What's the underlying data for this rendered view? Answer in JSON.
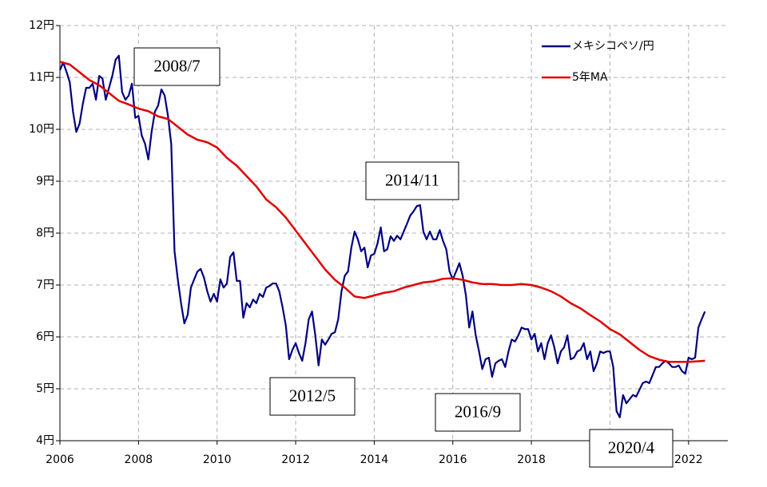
{
  "chart_data": {
    "type": "line",
    "xlim": [
      2006,
      2023
    ],
    "xticks": [
      2006,
      2008,
      2010,
      2012,
      2014,
      2016,
      2018,
      2020,
      2022
    ],
    "ylim": [
      4,
      12
    ],
    "yticks": [
      {
        "value": 4,
        "label": "4円"
      },
      {
        "value": 5,
        "label": "5円"
      },
      {
        "value": 6,
        "label": "6円"
      },
      {
        "value": 7,
        "label": "7円"
      },
      {
        "value": 8,
        "label": "8円"
      },
      {
        "value": 9,
        "label": "9円"
      },
      {
        "value": 10,
        "label": "10円"
      },
      {
        "value": 11,
        "label": "11円"
      },
      {
        "value": 12,
        "label": "12円"
      }
    ],
    "grid": true,
    "legend": "top-right",
    "annotations": [
      "2008/7",
      "2014/11",
      "2012/5",
      "2016/9",
      "2020/4"
    ],
    "series": [
      {
        "name": "メキシコペソ/円",
        "color": "#000080",
        "x": [
          2006,
          2006.083,
          2006.167,
          2006.25,
          2006.333,
          2006.417,
          2006.5,
          2006.583,
          2006.667,
          2006.75,
          2006.833,
          2006.917,
          2007,
          2007.083,
          2007.167,
          2007.25,
          2007.333,
          2007.417,
          2007.5,
          2007.583,
          2007.667,
          2007.75,
          2007.833,
          2007.917,
          2008,
          2008.083,
          2008.167,
          2008.25,
          2008.333,
          2008.417,
          2008.5,
          2008.583,
          2008.667,
          2008.75,
          2008.833,
          2008.917,
          2009,
          2009.083,
          2009.167,
          2009.25,
          2009.333,
          2009.417,
          2009.5,
          2009.583,
          2009.667,
          2009.75,
          2009.833,
          2009.917,
          2010,
          2010.083,
          2010.167,
          2010.25,
          2010.333,
          2010.417,
          2010.5,
          2010.583,
          2010.667,
          2010.75,
          2010.833,
          2010.917,
          2011,
          2011.083,
          2011.167,
          2011.25,
          2011.333,
          2011.417,
          2011.5,
          2011.583,
          2011.667,
          2011.75,
          2011.833,
          2011.917,
          2012,
          2012.083,
          2012.167,
          2012.25,
          2012.333,
          2012.417,
          2012.5,
          2012.583,
          2012.667,
          2012.75,
          2012.833,
          2012.917,
          2013,
          2013.083,
          2013.167,
          2013.25,
          2013.333,
          2013.417,
          2013.5,
          2013.583,
          2013.667,
          2013.75,
          2013.833,
          2013.917,
          2014,
          2014.083,
          2014.167,
          2014.25,
          2014.333,
          2014.417,
          2014.5,
          2014.583,
          2014.667,
          2014.75,
          2014.833,
          2014.917,
          2015,
          2015.083,
          2015.167,
          2015.25,
          2015.333,
          2015.417,
          2015.5,
          2015.583,
          2015.667,
          2015.75,
          2015.833,
          2015.917,
          2016,
          2016.083,
          2016.167,
          2016.25,
          2016.333,
          2016.417,
          2016.5,
          2016.583,
          2016.667,
          2016.75,
          2016.833,
          2016.917,
          2017,
          2017.083,
          2017.167,
          2017.25,
          2017.333,
          2017.417,
          2017.5,
          2017.583,
          2017.667,
          2017.75,
          2017.833,
          2017.917,
          2018,
          2018.083,
          2018.167,
          2018.25,
          2018.333,
          2018.417,
          2018.5,
          2018.583,
          2018.667,
          2018.75,
          2018.833,
          2018.917,
          2019,
          2019.083,
          2019.167,
          2019.25,
          2019.333,
          2019.417,
          2019.5,
          2019.583,
          2019.667,
          2019.75,
          2019.833,
          2019.917,
          2020,
          2020.083,
          2020.167,
          2020.25,
          2020.333,
          2020.417,
          2020.5,
          2020.583,
          2020.667,
          2020.75,
          2020.833,
          2020.917,
          2021,
          2021.083,
          2021.167,
          2021.25,
          2021.333,
          2021.417,
          2021.5,
          2021.583,
          2021.667,
          2021.75,
          2021.833,
          2021.917,
          2022,
          2022.083,
          2022.167,
          2022.25,
          2022.333,
          2022.417
        ],
        "values": [
          11.14,
          11.29,
          11.11,
          10.91,
          10.34,
          9.95,
          10.11,
          10.49,
          10.8,
          10.8,
          10.88,
          10.57,
          11.03,
          10.98,
          10.57,
          10.8,
          11.03,
          11.34,
          11.42,
          10.72,
          10.57,
          10.65,
          10.88,
          10.22,
          10.26,
          9.88,
          9.72,
          9.42,
          9.95,
          10.34,
          10.46,
          10.77,
          10.65,
          10.26,
          9.72,
          7.65,
          7.11,
          6.65,
          6.26,
          6.42,
          6.95,
          7.11,
          7.26,
          7.31,
          7.14,
          6.88,
          6.68,
          6.83,
          6.68,
          7.11,
          6.95,
          7.03,
          7.54,
          7.63,
          7.08,
          7.08,
          6.37,
          6.65,
          6.57,
          6.72,
          6.65,
          6.83,
          6.77,
          6.95,
          6.98,
          7.03,
          7.03,
          6.88,
          6.57,
          6.22,
          5.57,
          5.75,
          5.88,
          5.69,
          5.54,
          5.88,
          6.34,
          6.49,
          6.03,
          5.45,
          5.95,
          5.85,
          5.95,
          6.06,
          6.09,
          6.34,
          6.88,
          7.18,
          7.26,
          7.72,
          8.03,
          7.88,
          7.65,
          7.72,
          7.34,
          7.57,
          7.6,
          7.8,
          8.11,
          7.65,
          7.69,
          7.94,
          7.85,
          7.95,
          7.88,
          8.03,
          8.18,
          8.34,
          8.42,
          8.52,
          8.54,
          8.03,
          7.88,
          8.03,
          7.88,
          7.88,
          8.06,
          7.85,
          7.69,
          7.26,
          7.11,
          7.26,
          7.42,
          7.18,
          6.8,
          6.18,
          6.49,
          6.03,
          5.72,
          5.38,
          5.57,
          5.6,
          5.23,
          5.49,
          5.54,
          5.57,
          5.42,
          5.72,
          5.95,
          5.91,
          6.03,
          6.18,
          6.15,
          6.15,
          5.95,
          6.06,
          5.72,
          5.88,
          5.57,
          5.88,
          6.03,
          5.8,
          5.49,
          5.72,
          5.8,
          6.03,
          5.57,
          5.6,
          5.72,
          5.75,
          5.88,
          5.57,
          5.72,
          5.34,
          5.49,
          5.72,
          5.69,
          5.72,
          5.72,
          5.42,
          4.57,
          4.45,
          4.88,
          4.72,
          4.8,
          4.88,
          4.85,
          4.98,
          5.11,
          5.14,
          5.11,
          5.26,
          5.42,
          5.42,
          5.49,
          5.54,
          5.49,
          5.42,
          5.42,
          5.45,
          5.34,
          5.29,
          5.6,
          5.57,
          5.6,
          6.18,
          6.34,
          6.49
        ]
      },
      {
        "name": "5年MA",
        "color": "#e00000",
        "x": [
          2006,
          2006.25,
          2006.5,
          2006.75,
          2007,
          2007.25,
          2007.5,
          2007.75,
          2008,
          2008.25,
          2008.5,
          2008.75,
          2009,
          2009.25,
          2009.5,
          2009.75,
          2010,
          2010.25,
          2010.5,
          2010.75,
          2011,
          2011.25,
          2011.5,
          2011.75,
          2012,
          2012.25,
          2012.5,
          2012.75,
          2013,
          2013.25,
          2013.5,
          2013.75,
          2014,
          2014.25,
          2014.5,
          2014.75,
          2015,
          2015.25,
          2015.5,
          2015.75,
          2016,
          2016.25,
          2016.5,
          2016.75,
          2017,
          2017.25,
          2017.5,
          2017.75,
          2018,
          2018.25,
          2018.5,
          2018.75,
          2019,
          2019.25,
          2019.5,
          2019.75,
          2020,
          2020.25,
          2020.5,
          2020.75,
          2021,
          2021.25,
          2021.5,
          2021.75,
          2022,
          2022.25,
          2022.42
        ],
        "values": [
          11.3,
          11.25,
          11.1,
          10.95,
          10.85,
          10.7,
          10.55,
          10.48,
          10.4,
          10.35,
          10.25,
          10.2,
          10.05,
          9.9,
          9.8,
          9.75,
          9.65,
          9.45,
          9.3,
          9.1,
          8.9,
          8.65,
          8.5,
          8.3,
          8.05,
          7.8,
          7.55,
          7.3,
          7.1,
          6.95,
          6.78,
          6.75,
          6.8,
          6.85,
          6.88,
          6.95,
          7.0,
          7.05,
          7.07,
          7.12,
          7.13,
          7.1,
          7.05,
          7.02,
          7.02,
          7.0,
          7.0,
          7.02,
          7.0,
          6.95,
          6.88,
          6.78,
          6.65,
          6.55,
          6.42,
          6.3,
          6.15,
          6.05,
          5.9,
          5.75,
          5.63,
          5.56,
          5.52,
          5.52,
          5.52,
          5.53,
          5.54
        ]
      }
    ]
  }
}
